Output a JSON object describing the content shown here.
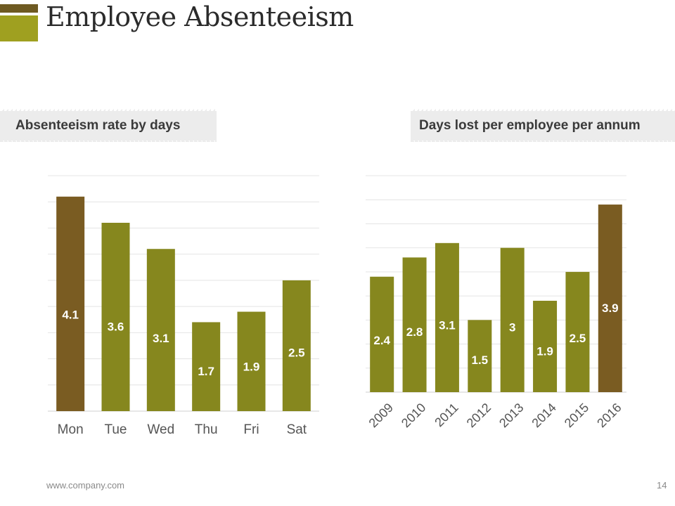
{
  "slide": {
    "title": "Employee Absenteeism",
    "footer_url": "www.company.com",
    "page_number": "14"
  },
  "colors": {
    "bar": "#86871e",
    "highlight": "#7a5c22",
    "grid": "#e4e4e4",
    "axis_text": "#555555",
    "label_text": "#ffffff"
  },
  "chart_data": [
    {
      "type": "bar",
      "title": "Absenteeism rate by days",
      "categories": [
        "Mon",
        "Tue",
        "Wed",
        "Thu",
        "Fri",
        "Sat"
      ],
      "values": [
        4.1,
        3.6,
        3.1,
        1.7,
        1.9,
        2.5
      ],
      "highlight_index": 0,
      "ylim": [
        0,
        4.5
      ],
      "xlabel": "",
      "ylabel": ""
    },
    {
      "type": "bar",
      "title": "Days lost per employee per annum",
      "categories": [
        "2009",
        "2010",
        "2011",
        "2012",
        "2013",
        "2014",
        "2015",
        "2016"
      ],
      "values": [
        2.4,
        2.8,
        3.1,
        1.5,
        3,
        1.9,
        2.5,
        3.9
      ],
      "highlight_index": 7,
      "ylim": [
        0,
        4.5
      ],
      "xlabel": "",
      "ylabel": ""
    }
  ]
}
